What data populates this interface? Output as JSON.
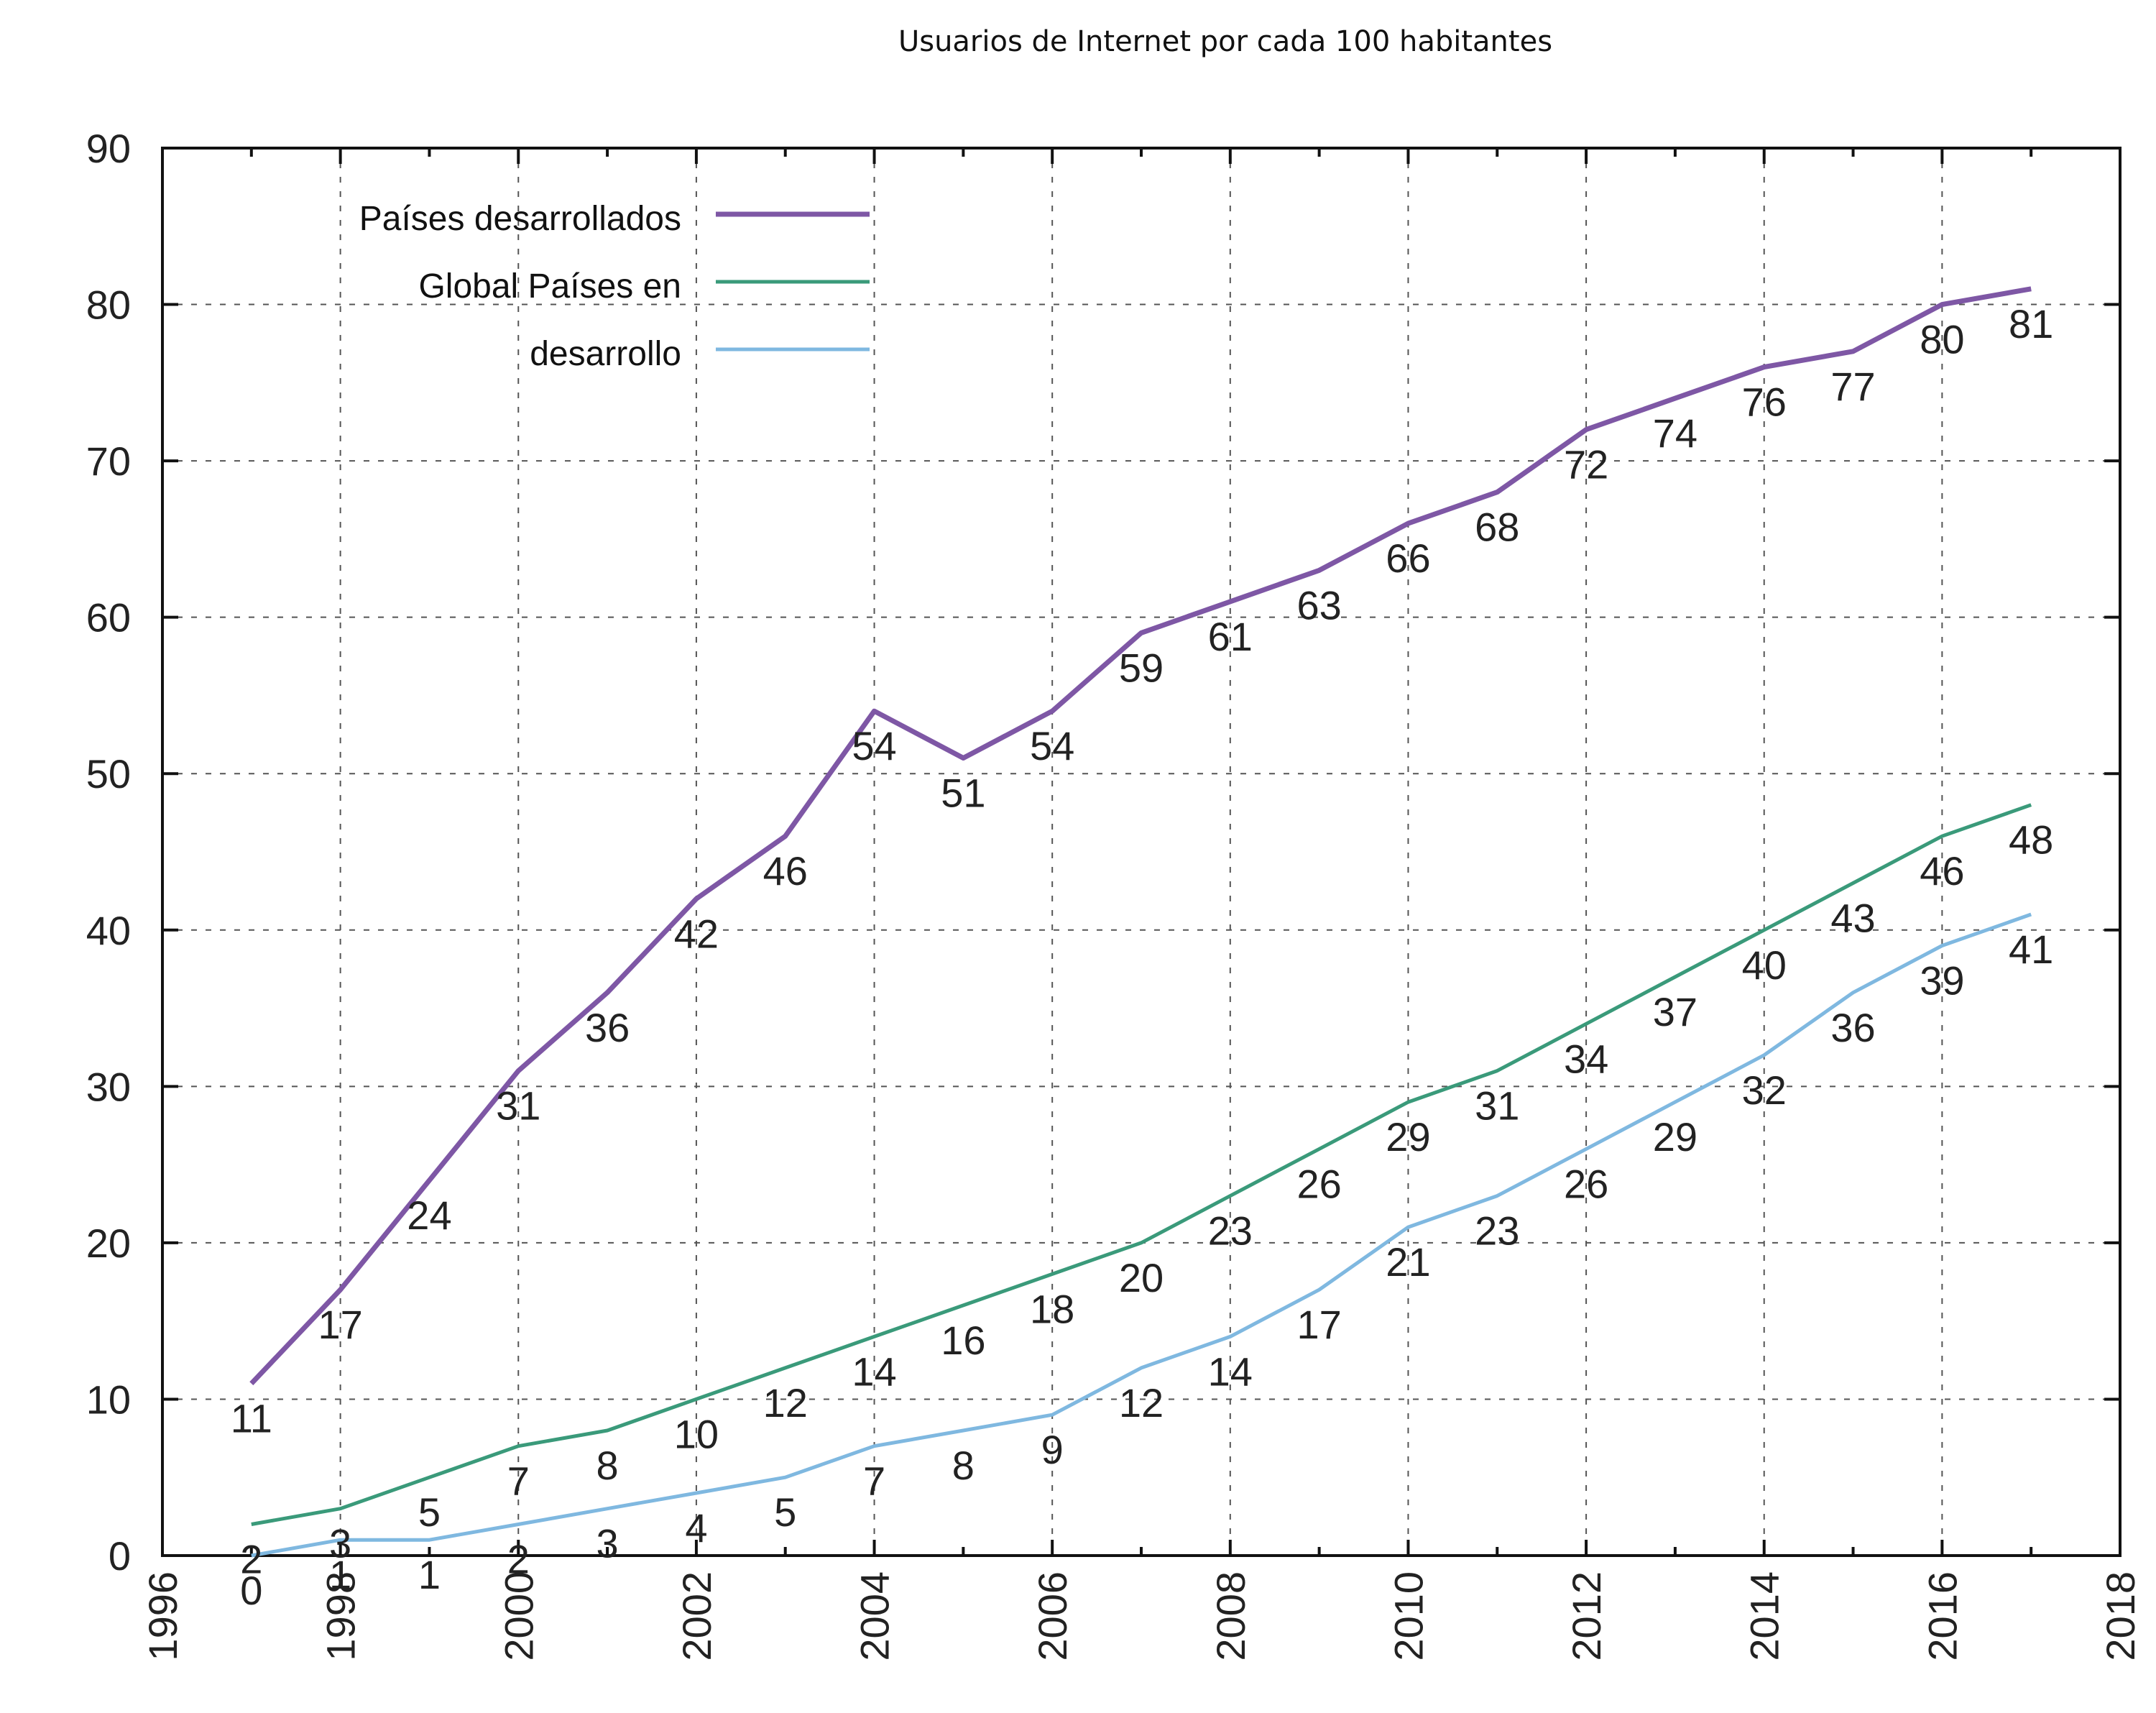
{
  "chart_data": {
    "type": "line",
    "title": "Usuarios de Internet por cada 100 habitantes",
    "xlabel": "",
    "ylabel": "",
    "xlim": [
      1996,
      2018
    ],
    "ylim": [
      0,
      90
    ],
    "x_ticks": [
      "1996",
      "1998",
      "2000",
      "2002",
      "2004",
      "2006",
      "2008",
      "2010",
      "2012",
      "2014",
      "2016",
      "2018"
    ],
    "y_ticks": [
      "0",
      "10",
      "20",
      "30",
      "40",
      "50",
      "60",
      "70",
      "80",
      "90"
    ],
    "grid": true,
    "legend_position": "top-left",
    "legend_entries": [
      "Países desarrollados",
      "Global Países en",
      "desarrollo"
    ],
    "x": [
      1997,
      1998,
      1999,
      2000,
      2001,
      2002,
      2003,
      2004,
      2005,
      2006,
      2007,
      2008,
      2009,
      2010,
      2011,
      2012,
      2013,
      2014,
      2015,
      2016,
      2017
    ],
    "series": [
      {
        "name": "Países desarrollados",
        "color": "#7e57a5",
        "values": [
          11,
          17,
          24,
          31,
          36,
          42,
          46,
          54,
          51,
          54,
          59,
          61,
          63,
          66,
          68,
          72,
          74,
          76,
          77,
          80,
          81
        ],
        "labels": [
          "11",
          "17",
          "24",
          "31",
          "36",
          "42",
          "46",
          "54",
          "51",
          "54",
          "59",
          "61",
          "63",
          "66",
          "68",
          "72",
          "74",
          "76",
          "77",
          "80",
          "81"
        ]
      },
      {
        "name": "Global Países en",
        "color": "#3a9a7a",
        "values": [
          2,
          3,
          5,
          7,
          8,
          10,
          12,
          14,
          16,
          18,
          20,
          23,
          26,
          29,
          31,
          34,
          37,
          40,
          43,
          46,
          48
        ],
        "labels": [
          "2",
          "3",
          "5",
          "7",
          "8",
          "10",
          "12",
          "14",
          "16",
          "18",
          "20",
          "23",
          "26",
          "29",
          "31",
          "34",
          "37",
          "40",
          "43",
          "46",
          "48"
        ]
      },
      {
        "name": "desarrollo",
        "color": "#7fb8e0",
        "values": [
          0,
          1,
          1,
          2,
          3,
          4,
          5,
          7,
          8,
          9,
          12,
          14,
          17,
          21,
          23,
          26,
          29,
          32,
          36,
          39,
          41
        ],
        "labels": [
          "0",
          "1",
          "1",
          "2",
          "3",
          "4",
          "5",
          "7",
          "8",
          "9",
          "12",
          "14",
          "17",
          "21",
          "23",
          "26",
          "29",
          "32",
          "36",
          "39",
          "41"
        ]
      }
    ]
  }
}
